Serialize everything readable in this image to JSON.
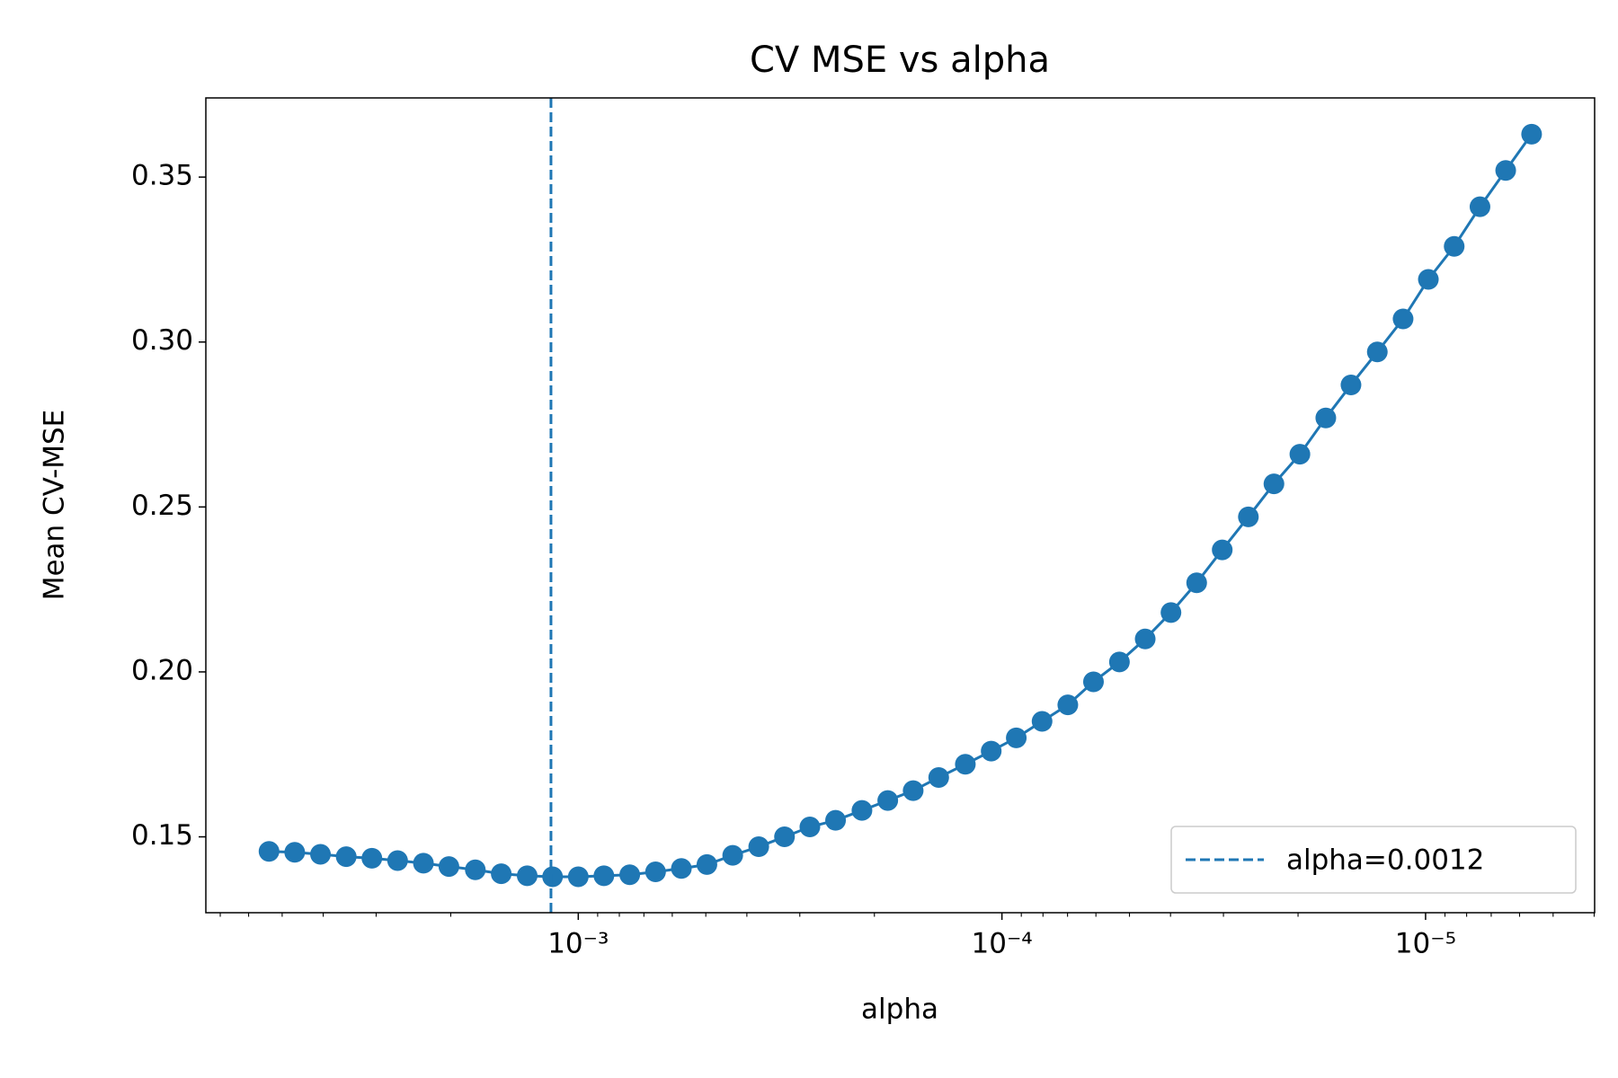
{
  "chart_data": {
    "type": "line",
    "title": "CV MSE vs alpha",
    "x_label": "alpha",
    "y_label": "Mean CV-MSE",
    "x_scale": "log",
    "x_inverted": true,
    "xlim": [
      0.00757,
      3.99e-06
    ],
    "ylim": [
      0.127,
      0.374
    ],
    "xticks": [
      {
        "value": 0.001,
        "label": "10⁻³"
      },
      {
        "value": 0.0001,
        "label": "10⁻⁴"
      },
      {
        "value": 1e-05,
        "label": "10⁻⁵"
      }
    ],
    "xminorticks": [
      0.007,
      0.006,
      0.005,
      0.004,
      0.003,
      0.002,
      0.0009,
      0.0008,
      0.0007,
      0.0006,
      0.0005,
      0.0004,
      0.0003,
      0.0002,
      9e-05,
      8e-05,
      7e-05,
      6e-05,
      5e-05,
      4e-05,
      3e-05,
      2e-05,
      9e-06,
      8e-06,
      7e-06,
      6e-06,
      5e-06,
      4e-06
    ],
    "yticks": [
      0.15,
      {
        "value": 0.2,
        "label": "0.20"
      },
      0.25,
      {
        "value": 0.3,
        "label": "0.30"
      },
      0.35
    ],
    "x": [
      0.00537,
      0.00467,
      0.00406,
      0.00353,
      0.00307,
      0.00267,
      0.00232,
      0.00202,
      0.00175,
      0.00152,
      0.00132,
      0.00115,
      0.001,
      0.00087,
      0.000756,
      0.000657,
      0.000571,
      0.000497,
      0.000432,
      0.000375,
      0.000326,
      0.000284,
      0.000247,
      0.000214,
      0.000186,
      0.000162,
      0.000141,
      0.000122,
      0.000106,
      9.25e-05,
      8.04e-05,
      6.99e-05,
      6.08e-05,
      5.28e-05,
      4.59e-05,
      3.99e-05,
      3.47e-05,
      3.02e-05,
      2.62e-05,
      2.28e-05,
      1.98e-05,
      1.72e-05,
      1.5e-05,
      1.3e-05,
      1.13e-05,
      9.85e-06,
      8.56e-06,
      7.44e-06,
      6.47e-06,
      5.62e-06
    ],
    "series": [
      {
        "color": "#1f77b4",
        "values": [
          0.1456,
          0.1453,
          0.1447,
          0.144,
          0.1435,
          0.1428,
          0.142,
          0.141,
          0.14,
          0.1388,
          0.1382,
          0.1379,
          0.1379,
          0.1382,
          0.1385,
          0.1394,
          0.1404,
          0.1416,
          0.1444,
          0.147,
          0.15,
          0.153,
          0.155,
          0.158,
          0.161,
          0.164,
          0.168,
          0.172,
          0.176,
          0.18,
          0.185,
          0.19,
          0.197,
          0.203,
          0.21,
          0.218,
          0.227,
          0.237,
          0.247,
          0.257,
          0.266,
          0.277,
          0.287,
          0.297,
          0.307,
          0.319,
          0.329,
          0.341,
          0.352,
          0.363
        ]
      }
    ],
    "vline": {
      "value": 0.00116,
      "label": "alpha=0.0012",
      "color": "#1f77b4"
    },
    "legend": "lower right"
  }
}
